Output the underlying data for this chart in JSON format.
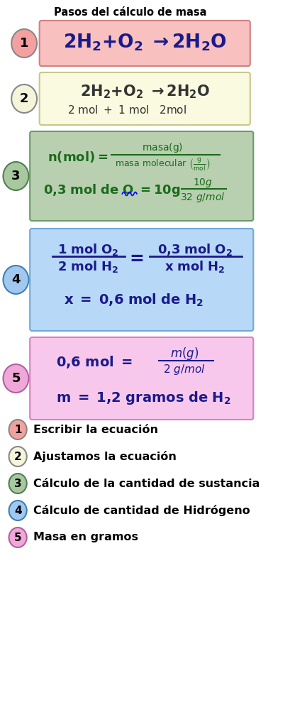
{
  "title": "Pasos del cálculo de masa",
  "background": "#ffffff",
  "step1": {
    "circle_color": "#f5a0a0",
    "circle_edge": "#888888",
    "box_color": "#f9c0c0",
    "box_edge": "#d08080",
    "label": "1"
  },
  "step2": {
    "circle_color": "#f5f5dc",
    "circle_edge": "#888888",
    "box_color": "#fafae0",
    "box_edge": "#c8c888",
    "label": "2"
  },
  "step3": {
    "circle_color": "#a8c8a0",
    "circle_edge": "#508050",
    "box_color": "#b8d0b0",
    "box_edge": "#6a9a6a",
    "label": "3"
  },
  "step4": {
    "circle_color": "#a0c8f0",
    "circle_edge": "#4080b0",
    "box_color": "#b8d8f8",
    "box_edge": "#70a8d8",
    "label": "4"
  },
  "step5": {
    "circle_color": "#f0a8d8",
    "circle_edge": "#b060a0",
    "box_color": "#f8c8ec",
    "box_edge": "#d880c0",
    "label": "5"
  },
  "legend": [
    {
      "num": "1",
      "color": "#f5a0a0",
      "edge": "#888888",
      "text": "Escribir la ecuación"
    },
    {
      "num": "2",
      "color": "#f5f5dc",
      "edge": "#888888",
      "text": "Ajustamos la ecuación"
    },
    {
      "num": "3",
      "color": "#a8c8a0",
      "edge": "#508050",
      "text": "Cálculo de la cantidad de sustancia"
    },
    {
      "num": "4",
      "color": "#a0c8f0",
      "edge": "#4080b0",
      "text": "Cálculo de cantidad de Hidrógeno"
    },
    {
      "num": "5",
      "color": "#f0a8d8",
      "edge": "#b060a0",
      "text": "Masa en gramos"
    }
  ]
}
